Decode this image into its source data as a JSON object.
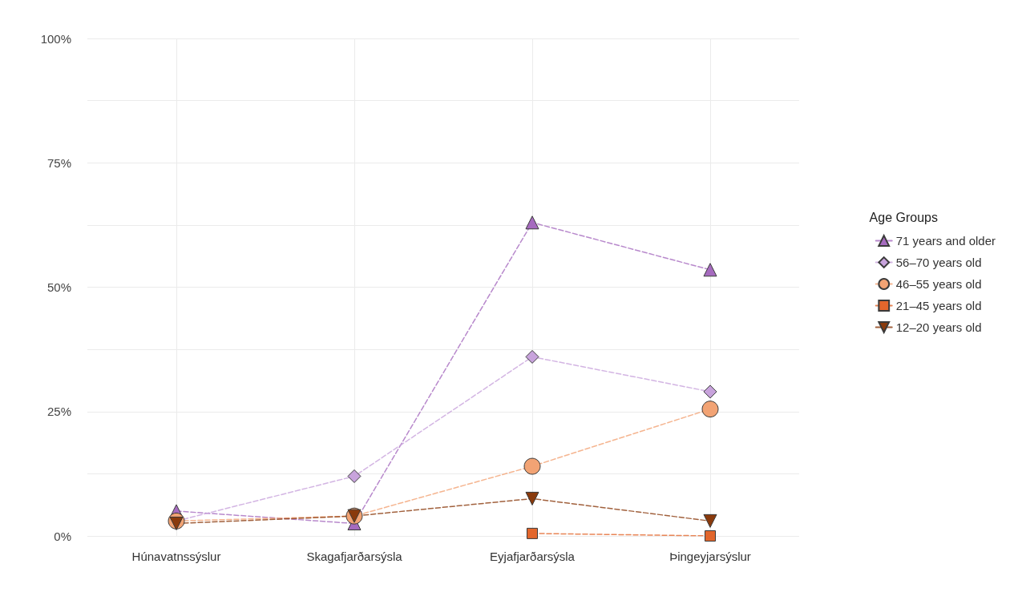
{
  "chart_data": {
    "type": "line",
    "categories": [
      "Húnavatnssýslur",
      "Skagafjarðarsýsla",
      "Eyjafjarðarsýsla",
      "Þingeyjarsýslur"
    ],
    "series": [
      {
        "name": "71 years and older",
        "color": "#a66bbf",
        "marker": "triangle",
        "values": [
          5,
          2.5,
          63,
          53.5
        ]
      },
      {
        "name": "56–70 years old",
        "color": "#c8a3dc",
        "marker": "diamond",
        "values": [
          3,
          12,
          36,
          29
        ]
      },
      {
        "name": "46–55 years old",
        "color": "#f2a374",
        "marker": "circle",
        "values": [
          3,
          4,
          14,
          25.5
        ]
      },
      {
        "name": "21–45 years old",
        "color": "#e2662c",
        "marker": "square",
        "values": [
          null,
          null,
          0.5,
          0
        ]
      },
      {
        "name": "12–20 years old",
        "color": "#8a3a0c",
        "marker": "triangle-down",
        "values": [
          2.5,
          4,
          7.5,
          3
        ]
      }
    ],
    "ylim": [
      0,
      100
    ],
    "yticks": [
      {
        "value": 0,
        "label": "0%"
      },
      {
        "value": 12.5,
        "label": null
      },
      {
        "value": 25,
        "label": "25%"
      },
      {
        "value": 37.5,
        "label": null
      },
      {
        "value": 50,
        "label": "50%"
      },
      {
        "value": 62.5,
        "label": null
      },
      {
        "value": 75,
        "label": "75%"
      },
      {
        "value": 87.5,
        "label": null
      },
      {
        "value": 100,
        "label": "100%"
      }
    ],
    "legend_title": "Age Groups",
    "legend": "right",
    "grid": true,
    "line_style": "dashed"
  }
}
